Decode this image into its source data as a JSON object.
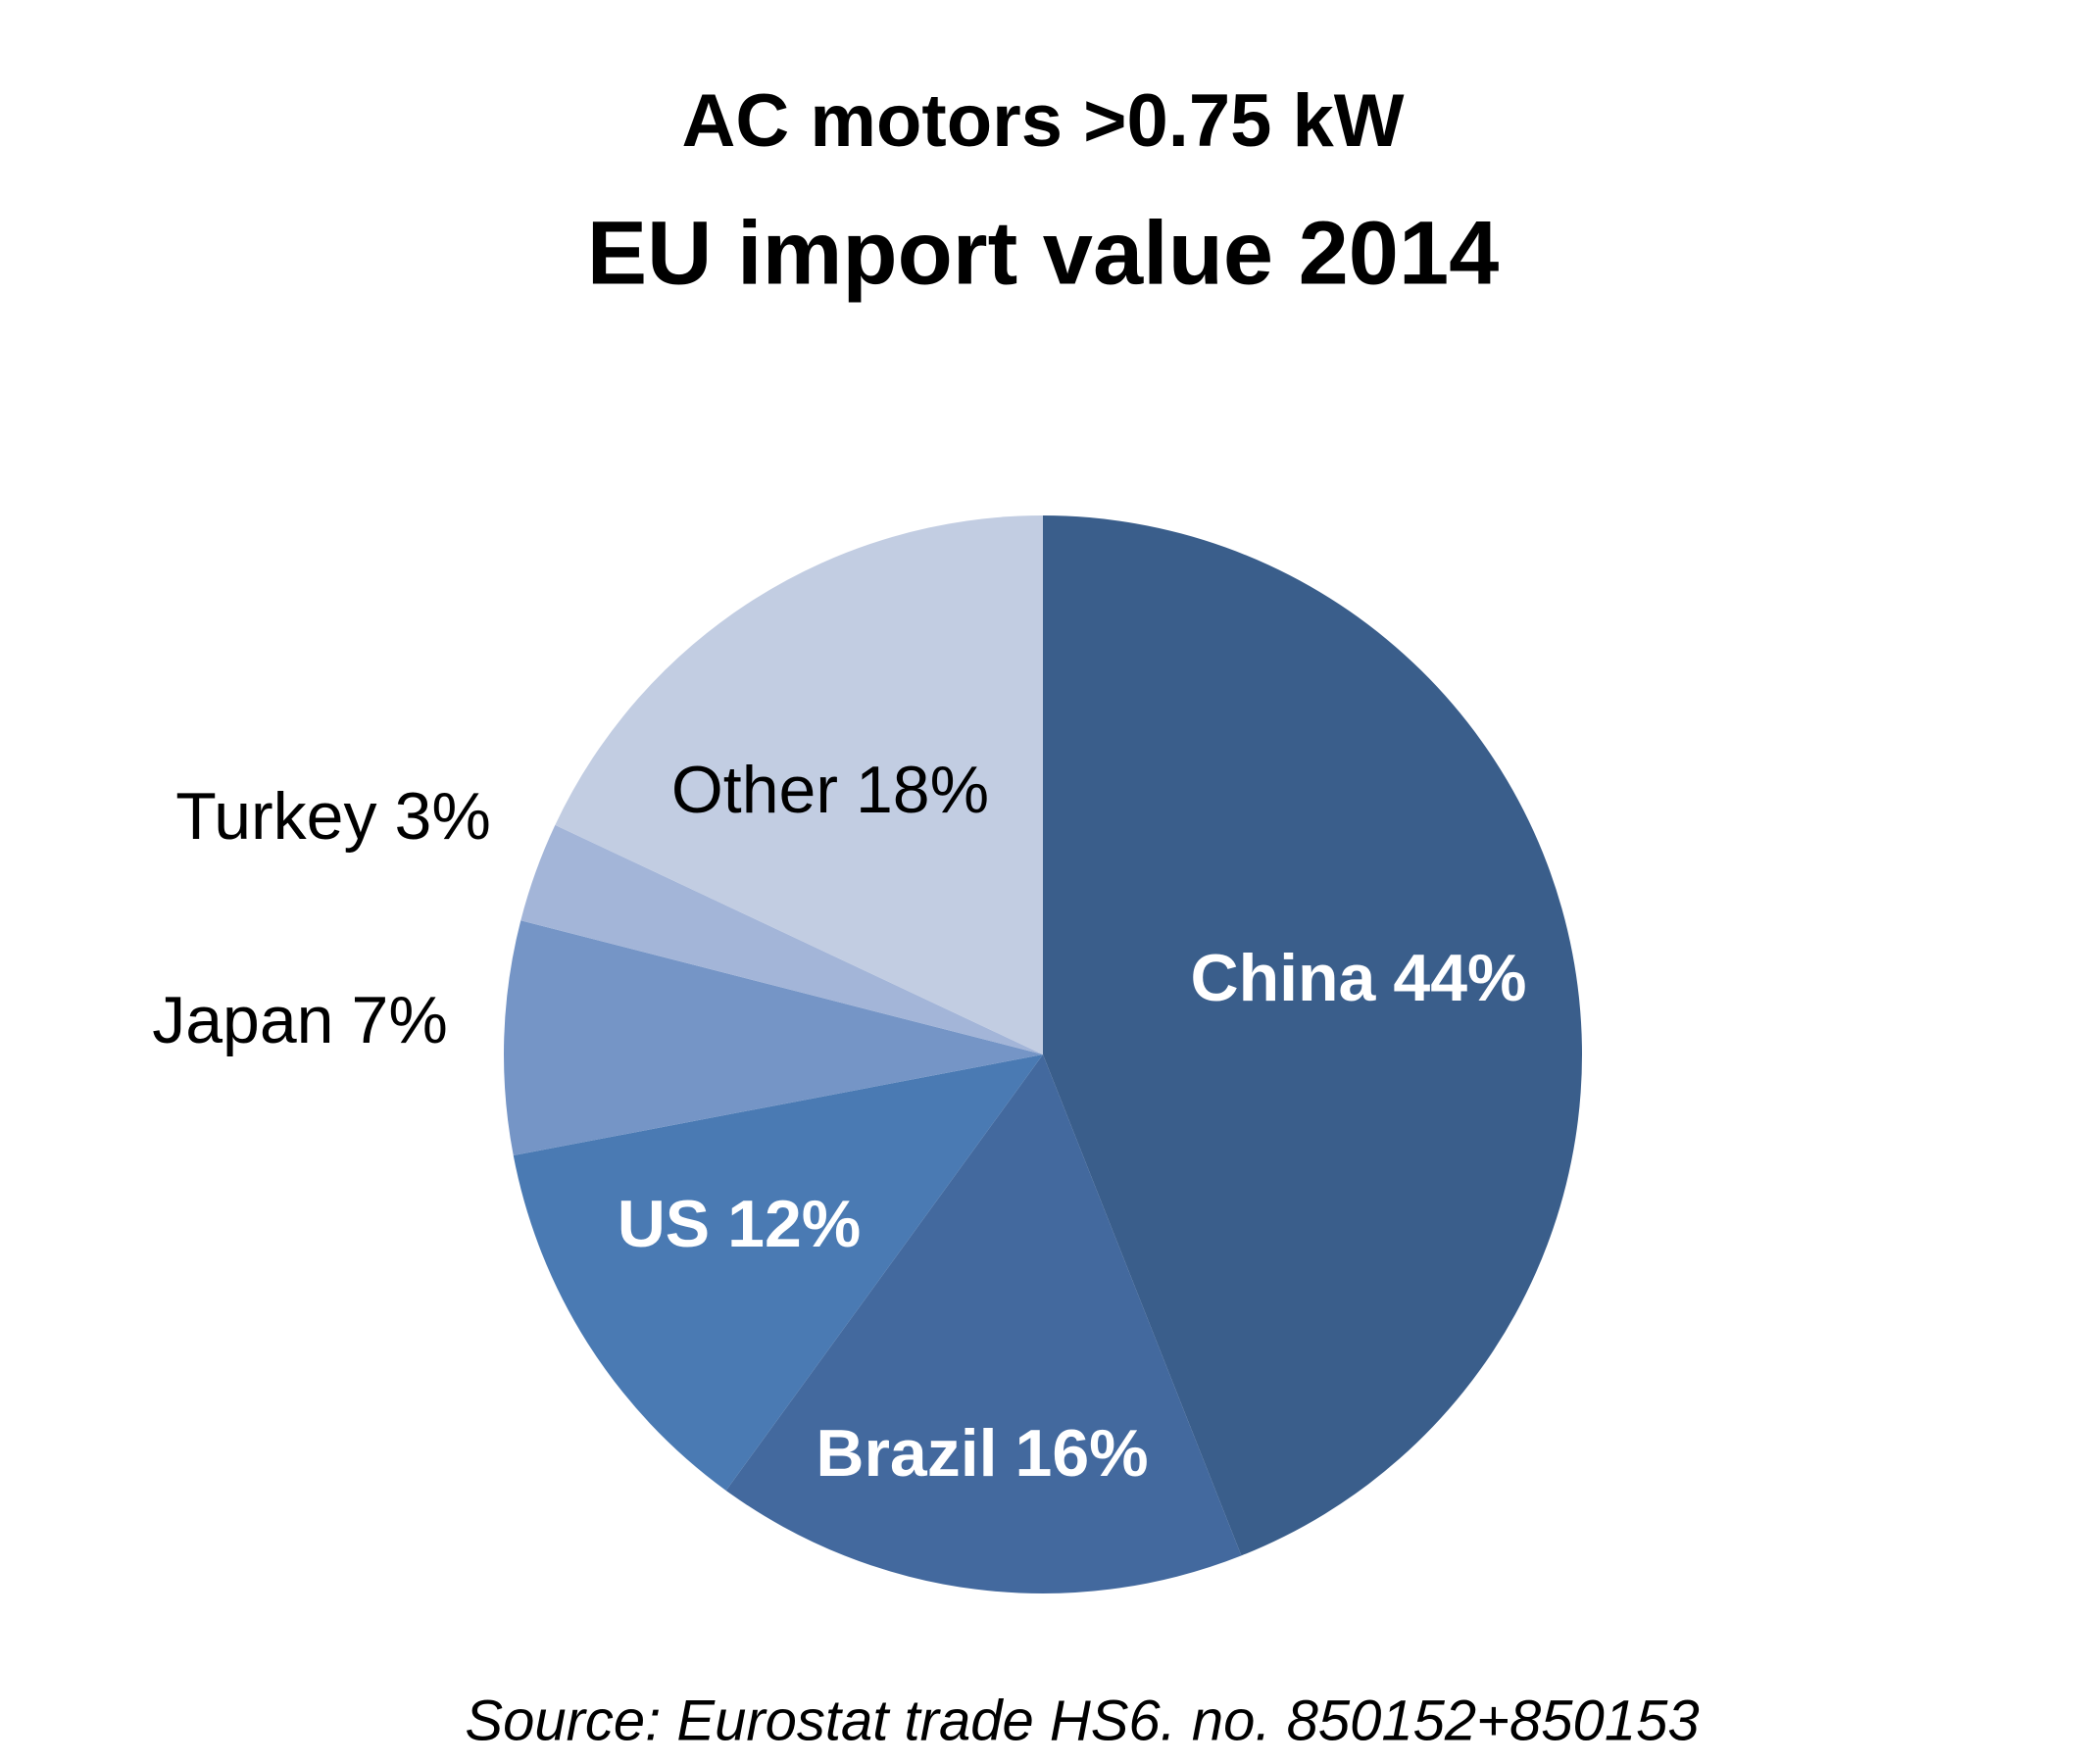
{
  "chart_data": {
    "type": "pie",
    "title": "AC motors >0.75 kW",
    "subtitle": "EU import value 2014",
    "source": "Source: Eurostat trade HS6. no. 850152+850153",
    "categories": [
      "China",
      "Brazil",
      "US",
      "Japan",
      "Turkey",
      "Other"
    ],
    "values": [
      44,
      16,
      12,
      7,
      3,
      18
    ],
    "value_labels": [
      "44%",
      "16%",
      "12%",
      "7%",
      "3%",
      "18%"
    ],
    "colors": [
      "#3a5e8b",
      "#43699e",
      "#4a7ab3",
      "#7595c6",
      "#a3b5d8",
      "#c2cde2"
    ]
  }
}
